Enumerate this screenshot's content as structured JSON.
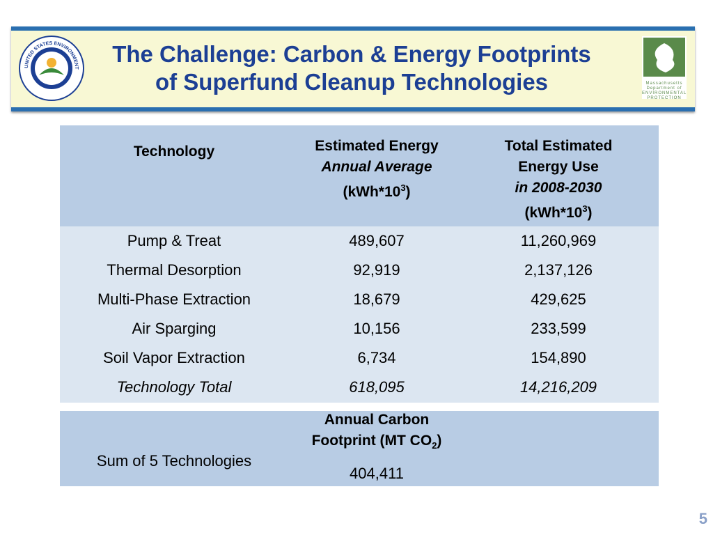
{
  "header": {
    "title_line1": "The Challenge: Carbon & Energy Footprints",
    "title_line2": "of Superfund Cleanup Technologies",
    "left_logo_text": "UNITED STATES ENVIRONMENTAL PROTECTION AGENCY",
    "right_logo_text": [
      "Massachusetts",
      "Department of",
      "ENVIRONMENTAL",
      "PROTECTION"
    ]
  },
  "table": {
    "columns": [
      {
        "lines": [
          "Technology"
        ]
      },
      {
        "lines": [
          "Estimated Energy",
          "Annual Average"
        ],
        "unit": "(kWh*10",
        "exp": "3",
        "unit_end": ")"
      },
      {
        "lines": [
          "Total Estimated",
          "Energy Use",
          "in 2008-2030"
        ],
        "unit": "(kWh*10",
        "exp": "3",
        "unit_end": ")"
      }
    ],
    "rows": [
      [
        "Pump & Treat",
        "489,607",
        "11,260,969"
      ],
      [
        "Thermal Desorption",
        "92,919",
        "2,137,126"
      ],
      [
        "Multi-Phase Extraction",
        "18,679",
        "429,625"
      ],
      [
        "Air Sparging",
        "10,156",
        "233,599"
      ],
      [
        "Soil Vapor Extraction",
        "6,734",
        "154,890"
      ]
    ],
    "total": [
      "Technology Total",
      "618,095",
      "14,216,209"
    ]
  },
  "carbon": {
    "label": "Sum of 5 Technologies",
    "heading_line1": "Annual Carbon",
    "heading_unit": "Footprint (MT CO",
    "heading_sub": "2",
    "heading_end": ")",
    "value": "404,411"
  },
  "page_number": "5"
}
